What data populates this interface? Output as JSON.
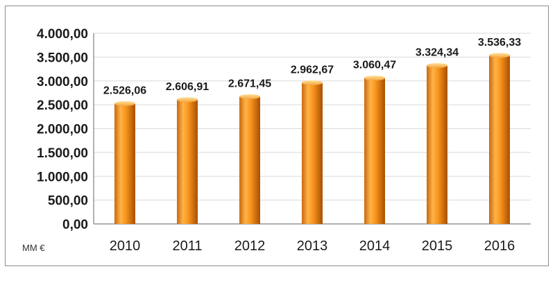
{
  "chart_data": {
    "type": "bar",
    "categories": [
      "2010",
      "2011",
      "2012",
      "2013",
      "2014",
      "2015",
      "2016"
    ],
    "values": [
      2526.06,
      2606.91,
      2671.45,
      2962.67,
      3060.47,
      3324.34,
      3536.33
    ],
    "data_labels": [
      "2.526,06",
      "2.606,91",
      "2.671,45",
      "2.962,67",
      "3.060,47",
      "3.324,34",
      "3.536,33"
    ],
    "y_ticks": [
      0,
      500,
      1000,
      1500,
      2000,
      2500,
      3000,
      3500,
      4000
    ],
    "y_tick_labels": [
      "0,00",
      "500,00",
      "1.000,00",
      "1.500,00",
      "2.000,00",
      "2.500,00",
      "3.000,00",
      "3.500,00",
      "4.000,00"
    ],
    "ylim": [
      0,
      4000
    ],
    "unit_label": "MM €",
    "grid": true,
    "colors": {
      "bar_light": "#ffc060",
      "bar_mid": "#f7941d",
      "bar_dark": "#b95a00",
      "grid": "#d9d9d9",
      "axis": "#7f7f7f"
    }
  }
}
